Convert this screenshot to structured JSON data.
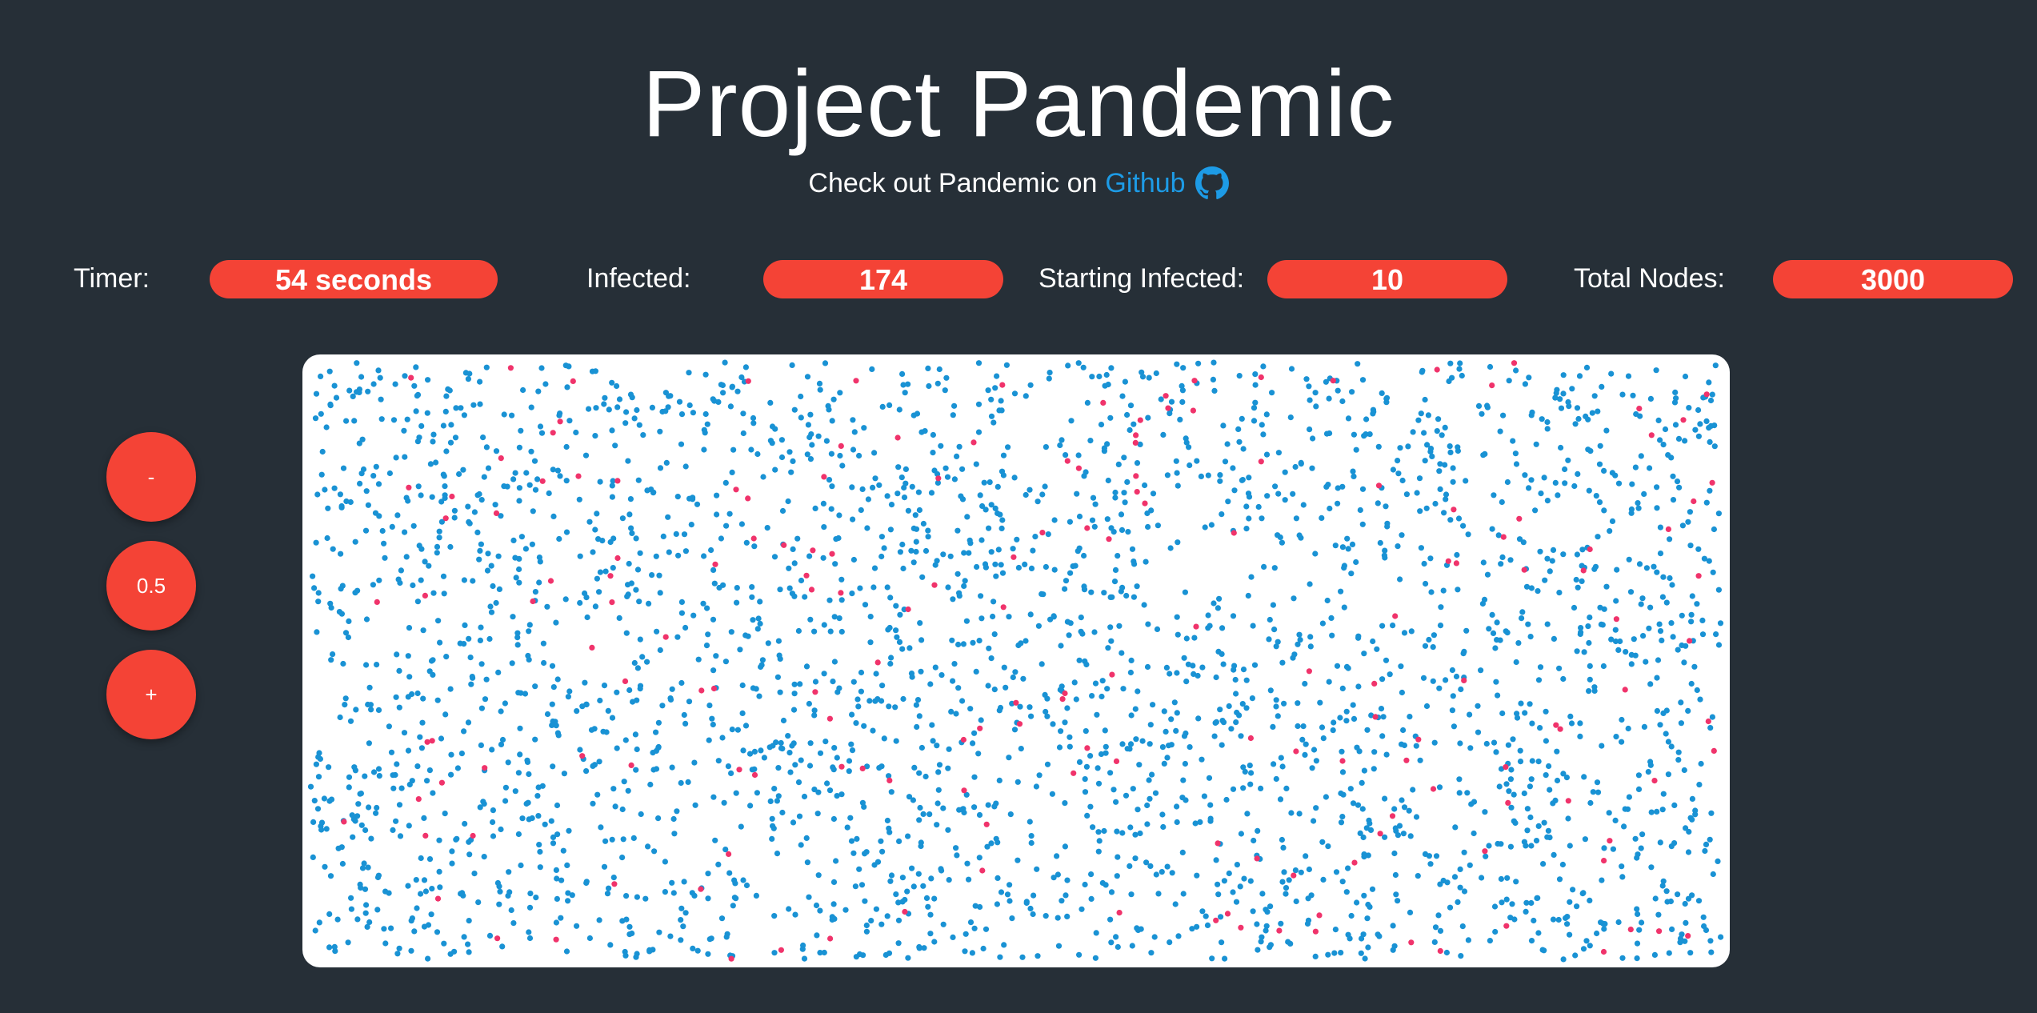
{
  "header": {
    "title": "Project Pandemic",
    "subtitle_lead": "Check out Pandemic on",
    "subtitle_link": "Github",
    "github_icon": "github-icon"
  },
  "stats": {
    "timer_label": "Timer:",
    "timer_value": "54 seconds",
    "infected_label": "Infected:",
    "infected_value": "174",
    "starting_infected_label": "Starting Infected:",
    "starting_infected_value": "10",
    "total_nodes_label": "Total Nodes:",
    "total_nodes_value": "3000"
  },
  "controls": {
    "decrease_label": "-",
    "speed_value": "0.5",
    "increase_label": "+"
  },
  "simulation": {
    "healthy_color": "#1992d4",
    "infected_color": "#f0336b",
    "total_nodes": 3000,
    "infected_nodes": 174
  },
  "colors": {
    "background": "#262f37",
    "accent": "#f44336",
    "link": "#1d9be6"
  }
}
